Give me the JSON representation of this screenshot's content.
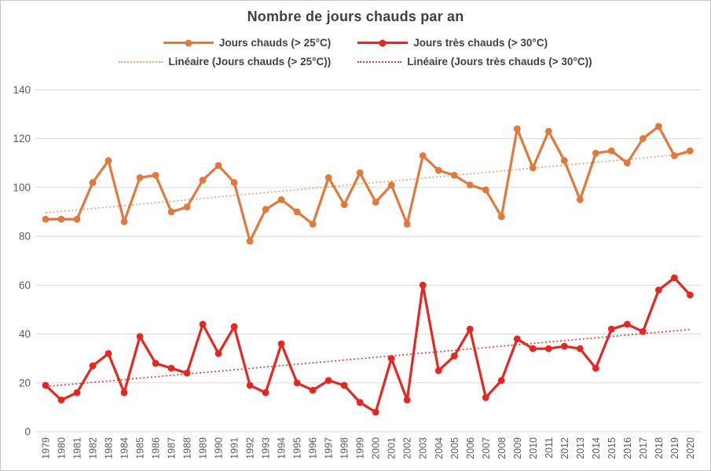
{
  "window": {
    "background": "#ffffff"
  },
  "chart_data": {
    "type": "line",
    "title": "Nombre de jours chauds par an",
    "x": [
      1979,
      1980,
      1981,
      1982,
      1983,
      1984,
      1985,
      1986,
      1987,
      1988,
      1989,
      1990,
      1991,
      1992,
      1993,
      1994,
      1995,
      1996,
      1997,
      1998,
      1999,
      2000,
      2001,
      2002,
      2003,
      2004,
      2005,
      2006,
      2007,
      2008,
      2009,
      2010,
      2011,
      2012,
      2013,
      2014,
      2015,
      2016,
      2017,
      2018,
      2019,
      2020
    ],
    "series": [
      {
        "name": "Jours chauds (> 25°C)",
        "color": "#E2793B",
        "values": [
          87,
          87,
          87,
          102,
          111,
          86,
          104,
          105,
          90,
          92,
          103,
          109,
          102,
          78,
          91,
          95,
          90,
          85,
          104,
          93,
          106,
          94,
          101,
          85,
          113,
          107,
          105,
          101,
          99,
          88,
          124,
          108,
          123,
          111,
          95,
          114,
          115,
          110,
          120,
          125,
          113,
          115
        ]
      },
      {
        "name": "Jours très chauds (> 30°C)",
        "color": "#E8261F",
        "values": [
          19,
          13,
          16,
          27,
          32,
          16,
          39,
          28,
          26,
          24,
          44,
          32,
          43,
          19,
          16,
          36,
          20,
          17,
          21,
          19,
          12,
          8,
          30,
          13,
          60,
          25,
          31,
          42,
          14,
          21,
          38,
          34,
          34,
          35,
          34,
          26,
          42,
          44,
          41,
          58,
          63,
          56
        ]
      }
    ],
    "trendlines": [
      {
        "name": "Linéaire (Jours chauds (> 25°C))",
        "series_index": 0,
        "color": "#EDA36F"
      },
      {
        "name": "Linéaire (Jours très chauds (> 30°C))",
        "series_index": 1,
        "color": "#EE3C30"
      }
    ],
    "ylim": [
      0,
      140
    ],
    "ytick_step": 20,
    "ytick_labels": [
      "0",
      "20",
      "40",
      "60",
      "80",
      "100",
      "120",
      "140"
    ],
    "grid": true,
    "legend_position": "top",
    "colors": {
      "grid": "#D9D9D9",
      "axis_text": "#595959",
      "title_text": "#404040"
    }
  }
}
